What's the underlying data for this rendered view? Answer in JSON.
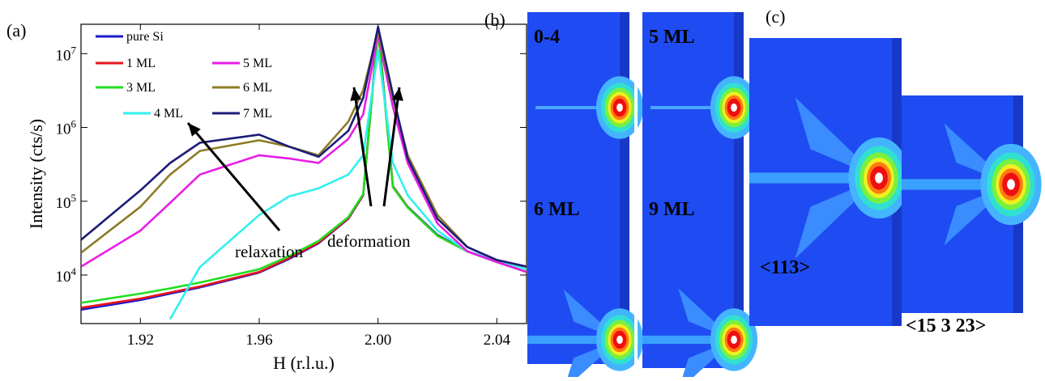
{
  "chart_data": {
    "type": "line",
    "panel_label": "(a)",
    "xlabel": "H (r.l.u.)",
    "ylabel": "Intensity (cts/s)",
    "x": [
      1.9,
      1.92,
      1.93,
      1.94,
      1.96,
      1.97,
      1.98,
      1.99,
      1.995,
      2.0,
      2.005,
      2.01,
      2.02,
      2.03,
      2.04,
      2.05
    ],
    "xlim": [
      1.9,
      2.05
    ],
    "xticks": [
      1.92,
      1.96,
      {
        "value": 2,
        "label": "2.00"
      },
      2.04
    ],
    "ylim": [
      2200,
      25000000
    ],
    "log_y": true,
    "yticks": [
      {
        "value": 10000,
        "label": "10^4"
      },
      {
        "value": 100000,
        "label": "10^5"
      },
      {
        "value": 1000000,
        "label": "10^6"
      },
      {
        "value": 10000000,
        "label": "10^7"
      }
    ],
    "annotations": [
      "relaxation",
      "deformation"
    ],
    "series": [
      {
        "name": "pure Si",
        "color": "#1a1acc",
        "values": [
          3400,
          4600,
          5600,
          6800,
          10800,
          16500,
          27000,
          58000,
          120000,
          23000000,
          160000,
          84000,
          35000,
          21000,
          15000,
          11000
        ]
      },
      {
        "name": "1 ML",
        "color": "#e8141c",
        "values": [
          3600,
          4800,
          5800,
          7000,
          11000,
          17000,
          27500,
          59000,
          122000,
          21000000,
          158000,
          83000,
          34000,
          21000,
          15000,
          11000
        ]
      },
      {
        "name": "3 ML",
        "color": "#22dd22",
        "values": [
          4200,
          5600,
          6600,
          7900,
          12000,
          18000,
          29000,
          61000,
          125000,
          20000000,
          155000,
          82000,
          34000,
          21000,
          15000,
          11000
        ]
      },
      {
        "name": "4 ML",
        "color": "#33f0f0",
        "values": [
          null,
          null,
          2520,
          12800,
          65000,
          116000,
          150000,
          230000,
          420000,
          11000000,
          330000,
          120000,
          40000,
          21000,
          16000,
          12000
        ]
      },
      {
        "name": "5 ML",
        "color": "#e61ee6",
        "values": [
          13000,
          40000,
          95000,
          230000,
          420000,
          380000,
          330000,
          700000,
          1500000,
          18000000,
          1900000,
          330000,
          50000,
          21000,
          15000,
          11000
        ]
      },
      {
        "name": "6 ML",
        "color": "#8c7c28",
        "values": [
          20000,
          84000,
          230000,
          480000,
          670000,
          550000,
          420000,
          1200000,
          3200000,
          20000000,
          2500000,
          420000,
          65000,
          24000,
          16000,
          13000
        ]
      },
      {
        "name": "7 ML",
        "color": "#1c1c78",
        "values": [
          30000,
          140000,
          330000,
          620000,
          800000,
          550000,
          400000,
          900000,
          2500000,
          23000000,
          2800000,
          380000,
          58000,
          24000,
          16000,
          13000
        ]
      }
    ]
  },
  "panels": {
    "b": {
      "label": "(b)",
      "images": [
        "0-4",
        "5 ML",
        "6 ML",
        "9 ML"
      ]
    },
    "c": {
      "label": "(c)",
      "images": [
        "<113>",
        "<15 3 23>"
      ]
    }
  }
}
